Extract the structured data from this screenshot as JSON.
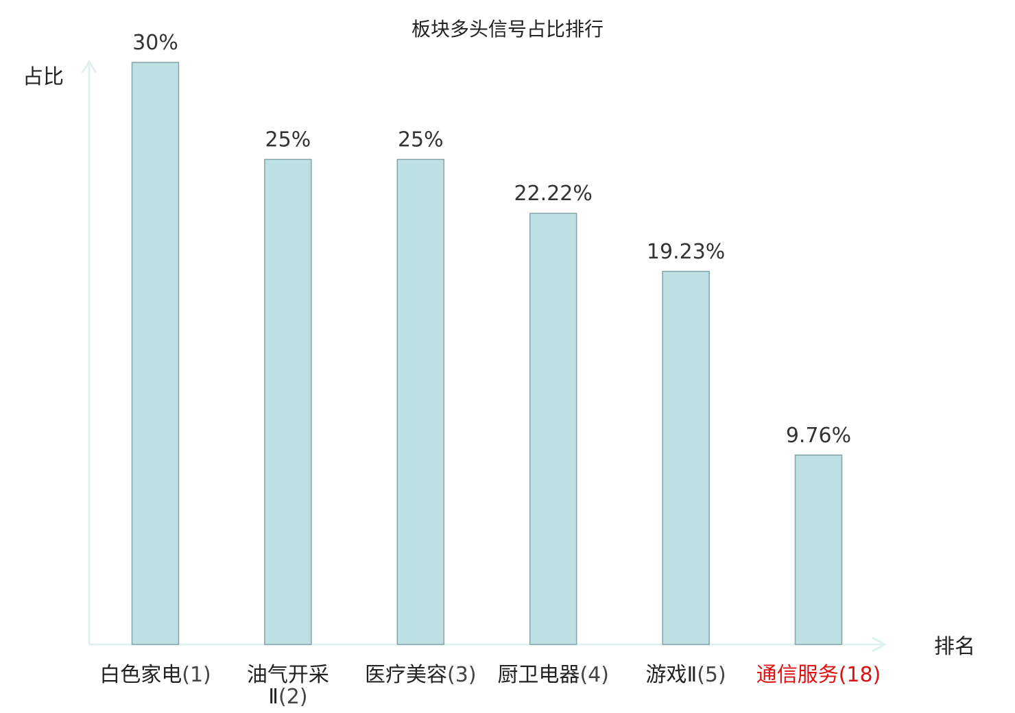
{
  "chart_data": {
    "type": "bar",
    "title": "板块多头信号占比排行",
    "ylabel": "占比",
    "xlabel": "排名",
    "categories": [
      {
        "name": "白色家电",
        "rank": "(1)",
        "highlight": false
      },
      {
        "name": "油气开采",
        "name2": "Ⅱ",
        "rank": "(2)",
        "highlight": false
      },
      {
        "name": "医疗美容",
        "rank": "(3)",
        "highlight": false
      },
      {
        "name": "厨卫电器",
        "rank": "(4)",
        "highlight": false
      },
      {
        "name": "游戏Ⅱ",
        "rank": "(5)",
        "highlight": false
      },
      {
        "name": "通信服务",
        "rank": "(18)",
        "highlight": true
      }
    ],
    "values": [
      30,
      25,
      25,
      22.22,
      19.23,
      9.76
    ],
    "value_labels": [
      "30%",
      "25%",
      "25%",
      "22.22%",
      "19.23%",
      "9.76%"
    ],
    "ylim": [
      0,
      30
    ],
    "grid": false,
    "colors": {
      "bar_fill": "#bde0e3",
      "bar_stroke": "#86a3a8",
      "axis": "#dff1ef",
      "label": "#222222",
      "highlight": "#dd1111"
    }
  }
}
